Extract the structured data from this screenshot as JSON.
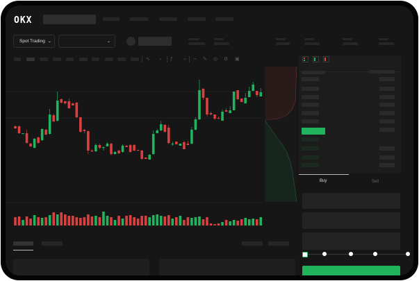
{
  "header": {
    "brand": "OKX",
    "market_selector": "Spot Trading",
    "pair_selector": ""
  },
  "order_panel": {
    "buy_tab": "Buy",
    "sell_tab": "Sell",
    "active_tab": "Buy",
    "slider_percent": 0,
    "slider_steps": 5
  },
  "colors": {
    "up": "#22b35e",
    "down": "#d9403f",
    "background": "#161616",
    "panel": "#1c1c1c",
    "accent_button": "#20b35c"
  },
  "icons": {
    "market_dropdown": "chevron-down-icon",
    "order_book_views": [
      "order-book-both-icon",
      "order-book-bids-icon",
      "order-book-asks-icon"
    ]
  },
  "chart_data": {
    "type": "candlestick",
    "title": "",
    "xlabel": "",
    "ylabel": "",
    "grid": true,
    "candles": [
      [
        118,
        115,
        119,
        114
      ],
      [
        118,
        108,
        119,
        107
      ],
      [
        107,
        108,
        108,
        107
      ],
      [
        108,
        94,
        113,
        93
      ],
      [
        93,
        89,
        94,
        88
      ],
      [
        87,
        100,
        101,
        86
      ],
      [
        102,
        94,
        103,
        93
      ],
      [
        98,
        114,
        115,
        97
      ],
      [
        113,
        106,
        114,
        105
      ],
      [
        107,
        135,
        143,
        106
      ],
      [
        134,
        125,
        136,
        124
      ],
      [
        126,
        155,
        168,
        125
      ],
      [
        157,
        152,
        158,
        151
      ],
      [
        154,
        151,
        155,
        149
      ],
      [
        154,
        144,
        158,
        143
      ],
      [
        151,
        148,
        152,
        148
      ],
      [
        152,
        131,
        153,
        130
      ],
      [
        131,
        110,
        131,
        109
      ],
      [
        113,
        111,
        114,
        108
      ],
      [
        111,
        83,
        112,
        78
      ],
      [
        83,
        82,
        85,
        81
      ],
      [
        82,
        91,
        93,
        81
      ],
      [
        91,
        87,
        93,
        85
      ],
      [
        87,
        88,
        89,
        83
      ],
      [
        89,
        93,
        95,
        89
      ],
      [
        93,
        78,
        94,
        76
      ],
      [
        78,
        81,
        82,
        77
      ],
      [
        83,
        79,
        84,
        78
      ],
      [
        81,
        90,
        92,
        80
      ],
      [
        90,
        88,
        91,
        88
      ],
      [
        91,
        81,
        92,
        80
      ],
      [
        91,
        83,
        92,
        82
      ],
      [
        84,
        83,
        84,
        83
      ],
      [
        83,
        71,
        84,
        70
      ],
      [
        73,
        71,
        73,
        71
      ],
      [
        70,
        77,
        78,
        70
      ],
      [
        78,
        107,
        112,
        77
      ],
      [
        108,
        112,
        114,
        108
      ],
      [
        112,
        121,
        126,
        111
      ],
      [
        120,
        110,
        121,
        109
      ],
      [
        116,
        94,
        120,
        92
      ],
      [
        92,
        93,
        96,
        90
      ],
      [
        96,
        92,
        96,
        92
      ],
      [
        90,
        93,
        93,
        90
      ],
      [
        95,
        85,
        97,
        85
      ],
      [
        93,
        91,
        97,
        91
      ],
      [
        93,
        113,
        117,
        92
      ],
      [
        113,
        128,
        131,
        112
      ],
      [
        128,
        170,
        185,
        127
      ],
      [
        172,
        159,
        173,
        156
      ],
      [
        159,
        135,
        159,
        132
      ],
      [
        137,
        135,
        139,
        134
      ],
      [
        135,
        129,
        135,
        127
      ],
      [
        130,
        129,
        132,
        129
      ],
      [
        126,
        139,
        142,
        126
      ],
      [
        141,
        139,
        144,
        139
      ],
      [
        137,
        141,
        147,
        137
      ],
      [
        141,
        168,
        168,
        141
      ],
      [
        170,
        157,
        170,
        156
      ],
      [
        158,
        153,
        158,
        153
      ],
      [
        151,
        159,
        166,
        151
      ],
      [
        160,
        169,
        175,
        160
      ],
      [
        169,
        178,
        182,
        169
      ],
      [
        169,
        163,
        169,
        160
      ],
      [
        161,
        167,
        173,
        161
      ]
    ],
    "candle_format": [
      "open",
      "close",
      "high",
      "low"
    ],
    "volume": [
      24,
      26,
      16,
      26,
      20,
      30,
      24,
      22,
      24,
      30,
      38,
      32,
      38,
      32,
      28,
      28,
      24,
      22,
      24,
      32,
      26,
      28,
      24,
      40,
      28,
      24,
      16,
      28,
      20,
      28,
      30,
      24,
      20,
      28,
      28,
      24,
      30,
      32,
      28,
      26,
      30,
      20,
      24,
      28,
      16,
      24,
      22,
      24,
      26,
      18,
      24,
      6,
      4,
      6,
      10,
      16,
      12,
      16,
      14,
      18,
      22,
      18,
      20,
      18,
      24
    ]
  }
}
